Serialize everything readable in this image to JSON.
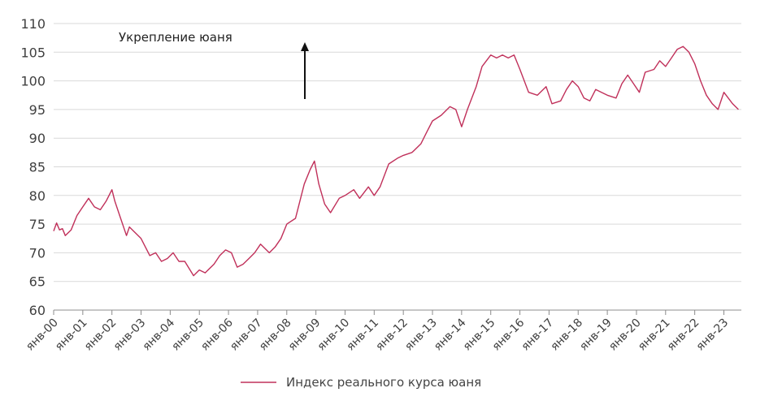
{
  "chart_data": {
    "type": "line",
    "title": "",
    "xlabel": "",
    "ylabel": "",
    "ylim": [
      60,
      110
    ],
    "yticks": [
      60,
      65,
      70,
      75,
      80,
      85,
      90,
      95,
      100,
      105,
      110
    ],
    "xticks": [
      "янв-00",
      "янв-01",
      "янв-02",
      "янв-03",
      "янв-04",
      "янв-05",
      "янв-06",
      "янв-07",
      "янв-08",
      "янв-09",
      "янв-10",
      "янв-11",
      "янв-12",
      "янв-13",
      "янв-14",
      "янв-15",
      "янв-16",
      "янв-17",
      "янв-18",
      "янв-19",
      "янв-20",
      "янв-21",
      "янв-22",
      "янв-23"
    ],
    "grid": "horizontal",
    "legend_position": "bottom",
    "annotation": "Укрепление юаня",
    "series": [
      {
        "name": "Индекс реального курса юаня",
        "color": "#c0305a",
        "x": [
          2000.0,
          2000.1,
          2000.2,
          2000.3,
          2000.4,
          2000.6,
          2000.8,
          2001.0,
          2001.2,
          2001.4,
          2001.6,
          2001.8,
          2002.0,
          2002.1,
          2002.3,
          2002.5,
          2002.6,
          2002.8,
          2003.0,
          2003.3,
          2003.5,
          2003.7,
          2003.9,
          2004.1,
          2004.3,
          2004.5,
          2004.8,
          2005.0,
          2005.2,
          2005.5,
          2005.7,
          2005.9,
          2006.1,
          2006.3,
          2006.5,
          2006.7,
          2006.9,
          2007.1,
          2007.4,
          2007.6,
          2007.8,
          2008.0,
          2008.3,
          2008.6,
          2008.8,
          2008.95,
          2009.1,
          2009.3,
          2009.5,
          2009.8,
          2010.0,
          2010.3,
          2010.5,
          2010.8,
          2011.0,
          2011.2,
          2011.5,
          2011.8,
          2012.0,
          2012.3,
          2012.6,
          2012.8,
          2013.0,
          2013.3,
          2013.6,
          2013.8,
          2014.0,
          2014.2,
          2014.5,
          2014.7,
          2015.0,
          2015.2,
          2015.4,
          2015.6,
          2015.8,
          2016.0,
          2016.3,
          2016.6,
          2016.9,
          2017.1,
          2017.4,
          2017.6,
          2017.8,
          2018.0,
          2018.2,
          2018.4,
          2018.6,
          2018.8,
          2019.0,
          2019.3,
          2019.5,
          2019.7,
          2019.9,
          2020.1,
          2020.3,
          2020.6,
          2020.8,
          2021.0,
          2021.2,
          2021.4,
          2021.6,
          2021.8,
          2022.0,
          2022.2,
          2022.4,
          2022.6,
          2022.8,
          2023.0,
          2023.3,
          2023.5
        ],
        "values": [
          73.8,
          75.2,
          74.0,
          74.2,
          73.0,
          74.0,
          76.5,
          78.0,
          79.5,
          78.0,
          77.5,
          79.0,
          81.0,
          79.0,
          76.0,
          73.0,
          74.5,
          73.5,
          72.5,
          69.5,
          70.0,
          68.5,
          69.0,
          70.0,
          68.5,
          68.5,
          66.0,
          67.0,
          66.5,
          68.0,
          69.5,
          70.5,
          70.0,
          67.5,
          68.0,
          69.0,
          70.0,
          71.5,
          70.0,
          71.0,
          72.5,
          75.0,
          76.0,
          82.0,
          84.5,
          86.0,
          82.0,
          78.5,
          77.0,
          79.5,
          80.0,
          81.0,
          79.5,
          81.5,
          80.0,
          81.5,
          85.5,
          86.5,
          87.0,
          87.5,
          89.0,
          91.0,
          93.0,
          94.0,
          95.5,
          95.0,
          92.0,
          95.0,
          99.0,
          102.5,
          104.5,
          104.0,
          104.5,
          104.0,
          104.5,
          102.0,
          98.0,
          97.5,
          99.0,
          96.0,
          96.5,
          98.5,
          100.0,
          99.0,
          97.0,
          96.5,
          98.5,
          98.0,
          97.5,
          97.0,
          99.5,
          101.0,
          99.5,
          98.0,
          101.5,
          102.0,
          103.5,
          102.5,
          104.0,
          105.5,
          106.0,
          105.0,
          103.0,
          100.0,
          97.5,
          96.0,
          95.0,
          98.0,
          96.0,
          95.0
        ]
      }
    ]
  }
}
